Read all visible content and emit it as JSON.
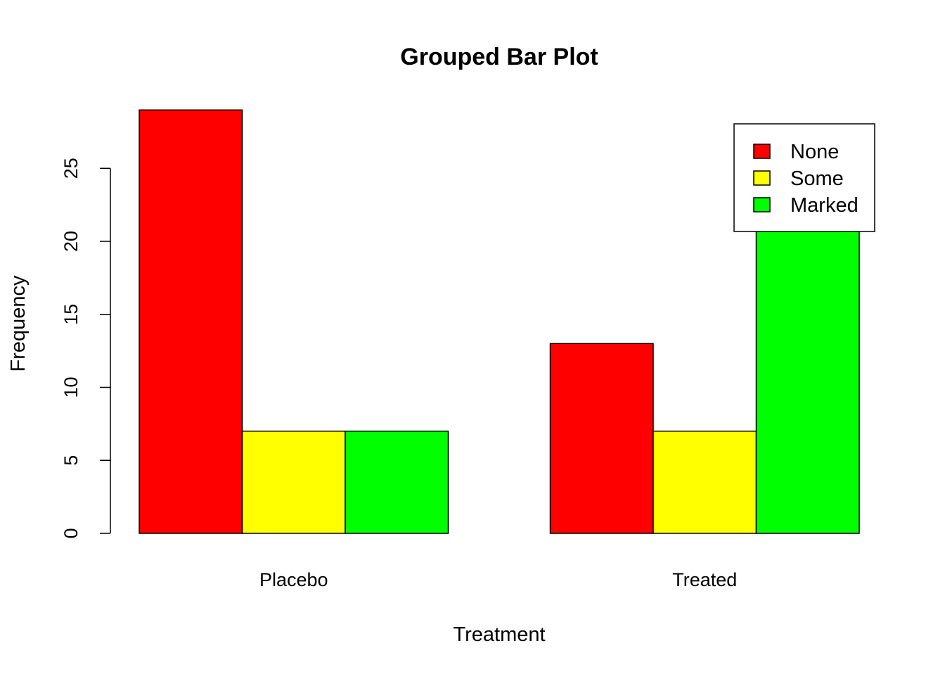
{
  "chart_data": {
    "type": "bar",
    "layout": "grouped",
    "title": "Grouped Bar Plot",
    "xlabel": "Treatment",
    "ylabel": "Frequency",
    "categories": [
      "Placebo",
      "Treated"
    ],
    "series": [
      {
        "name": "None",
        "color": "#ff0000",
        "values": [
          29,
          13
        ]
      },
      {
        "name": "Some",
        "color": "#ffff00",
        "values": [
          7,
          7
        ]
      },
      {
        "name": "Marked",
        "color": "#00ff00",
        "values": [
          7,
          21
        ]
      }
    ],
    "ylim": [
      0,
      29
    ],
    "yticks": [
      0,
      5,
      10,
      15,
      20,
      25
    ],
    "grid": false,
    "legend": {
      "position": "top-right"
    }
  }
}
